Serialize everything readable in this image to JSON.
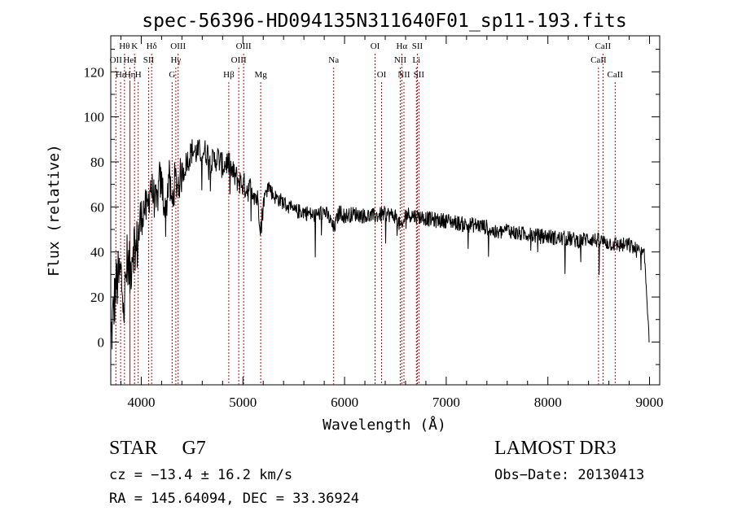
{
  "chart_data": {
    "type": "line",
    "title": "spec-56396-HD094135N311640F01_sp11-193.fits",
    "xlabel": "Wavelength (Å)",
    "ylabel": "Flux (relative)",
    "xlim": [
      3700,
      9100
    ],
    "ylim": [
      -19,
      136
    ],
    "xticks": [
      4000,
      5000,
      6000,
      7000,
      8000,
      9000
    ],
    "yticks": [
      0,
      20,
      40,
      60,
      80,
      100,
      120
    ],
    "xtick_labels": [
      "4000",
      "5000",
      "6000",
      "7000",
      "8000",
      "9000"
    ],
    "ytick_labels": [
      "0",
      "20",
      "40",
      "60",
      "80",
      "100",
      "120"
    ],
    "grid": false,
    "series": [
      {
        "name": "flux",
        "x": [
          3700,
          3750,
          3800,
          3830,
          3860,
          3890,
          3920,
          3950,
          3980,
          4000,
          4030,
          4060,
          4090,
          4120,
          4150,
          4180,
          4210,
          4240,
          4270,
          4300,
          4330,
          4360,
          4400,
          4450,
          4500,
          4550,
          4600,
          4650,
          4700,
          4750,
          4800,
          4850,
          4900,
          4950,
          5000,
          5050,
          5100,
          5150,
          5180,
          5200,
          5250,
          5300,
          5400,
          5500,
          5600,
          5700,
          5800,
          5850,
          5893,
          5950,
          6000,
          6100,
          6200,
          6300,
          6400,
          6500,
          6563,
          6600,
          6700,
          6800,
          6900,
          7000,
          7100,
          7200,
          7300,
          7400,
          7500,
          7600,
          7700,
          7800,
          7900,
          8000,
          8100,
          8200,
          8300,
          8400,
          8500,
          8600,
          8700,
          8800,
          8900,
          8950,
          9000
        ],
        "y": [
          0,
          25,
          30,
          15,
          35,
          30,
          45,
          40,
          50,
          55,
          60,
          58,
          70,
          65,
          60,
          72,
          68,
          55,
          75,
          60,
          72,
          70,
          75,
          80,
          85,
          84,
          85,
          84,
          80,
          82,
          78,
          80,
          75,
          72,
          70,
          68,
          68,
          62,
          50,
          62,
          70,
          65,
          62,
          58,
          58,
          56,
          58,
          55,
          50,
          58,
          56,
          57,
          56,
          56,
          57,
          56,
          50,
          57,
          56,
          55,
          54,
          54,
          53,
          52,
          52,
          51,
          48,
          50,
          48,
          48,
          47,
          47,
          46,
          46,
          45,
          46,
          45,
          44,
          43,
          43,
          40,
          38,
          0
        ]
      }
    ],
    "lines": [
      {
        "wl": 3835,
        "label": "Hθ",
        "row": 0
      },
      {
        "wl": 3750,
        "label": "OII",
        "row": 1
      },
      {
        "wl": 3797,
        "label": "Hε",
        "row": 2
      },
      {
        "wl": 3889,
        "label": "HeI",
        "row": 1
      },
      {
        "wl": 3934,
        "label": "K",
        "row": 0
      },
      {
        "wl": 3970,
        "label": "H",
        "row": 2
      },
      {
        "wl": 3889,
        "label": "Hη",
        "row": 2
      },
      {
        "wl": 4072,
        "label": "SII",
        "row": 1
      },
      {
        "wl": 4102,
        "label": "Hδ",
        "row": 0
      },
      {
        "wl": 4304,
        "label": "G",
        "row": 2
      },
      {
        "wl": 4340,
        "label": "Hγ",
        "row": 1
      },
      {
        "wl": 4363,
        "label": "OIII",
        "row": 0
      },
      {
        "wl": 4861,
        "label": "Hβ",
        "row": 2
      },
      {
        "wl": 4959,
        "label": "OIII",
        "row": 1
      },
      {
        "wl": 5007,
        "label": "OIII",
        "row": 0
      },
      {
        "wl": 5175,
        "label": "Mg",
        "row": 2
      },
      {
        "wl": 5893,
        "label": "Na",
        "row": 1
      },
      {
        "wl": 6300,
        "label": "OI",
        "row": 0
      },
      {
        "wl": 6364,
        "label": "OI",
        "row": 2
      },
      {
        "wl": 6548,
        "label": "NII",
        "row": 1
      },
      {
        "wl": 6563,
        "label": "Hα",
        "row": 0
      },
      {
        "wl": 6584,
        "label": "NII",
        "row": 2
      },
      {
        "wl": 6707,
        "label": "Li",
        "row": 1
      },
      {
        "wl": 6716,
        "label": "SII",
        "row": 0
      },
      {
        "wl": 6731,
        "label": "SII",
        "row": 2
      },
      {
        "wl": 8498,
        "label": "CaII",
        "row": 1
      },
      {
        "wl": 8542,
        "label": "CaII",
        "row": 0
      },
      {
        "wl": 8662,
        "label": "CaII",
        "row": 2
      }
    ]
  },
  "info": {
    "class_label": "STAR",
    "subclass": "G7",
    "survey": "LAMOST DR3",
    "cz": "cz = −13.4 ± 16.2 km/s",
    "obs_date": "Obs−Date: 20130413",
    "radec": "RA = 145.64094, DEC =  33.36924"
  }
}
